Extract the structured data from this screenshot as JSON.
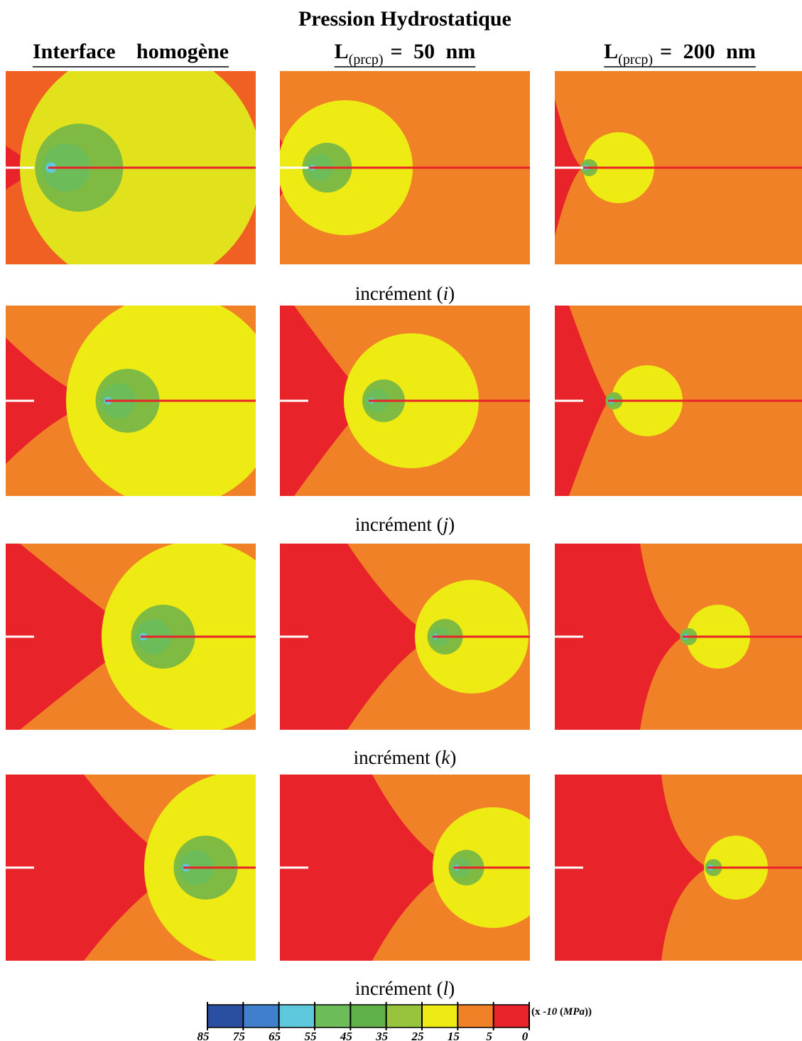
{
  "title": "Pression Hydrostatique",
  "columns": [
    {
      "text": "Interface homogène"
    },
    {
      "main": "L",
      "sub": "(prcp)",
      "rest": "= 50 nm"
    },
    {
      "main": "L",
      "sub": "(prcp)",
      "rest": "= 200 nm"
    }
  ],
  "rows": [
    {
      "parts": [
        "incrément (",
        "i",
        ")"
      ]
    },
    {
      "parts": [
        "incrément (",
        "j",
        ")"
      ]
    },
    {
      "parts": [
        "incrément (",
        "k",
        ")"
      ]
    },
    {
      "parts": [
        "incrément (",
        "l",
        ")"
      ]
    }
  ],
  "colorbar": {
    "colors": [
      "#2a4fa0",
      "#3f7fcc",
      "#5ec8dc",
      "#6cbd5a",
      "#5fb048",
      "#98c43c",
      "#eeea14",
      "#f08127",
      "#e8232a"
    ],
    "ticks": [
      85,
      75,
      65,
      55,
      45,
      35,
      25,
      15,
      5,
      0
    ],
    "unit_parts": [
      "(x ",
      "-10",
      " (",
      "MPa",
      "))"
    ]
  }
}
